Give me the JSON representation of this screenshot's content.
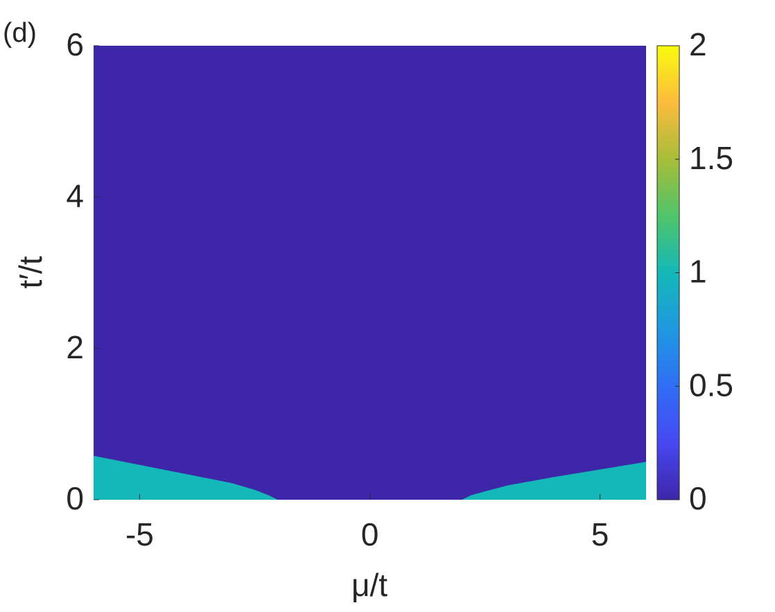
{
  "chart_data": {
    "type": "phase",
    "annotation": "(d)",
    "xlabel": "μ/t",
    "ylabel": "t′/t",
    "xlim": [
      -6,
      6
    ],
    "xticks": [
      -5,
      0,
      5
    ],
    "ylim": [
      0,
      6
    ],
    "yticks": [
      0,
      2,
      4,
      6
    ],
    "background_value": 0,
    "regions": [
      {
        "value": 1,
        "x": [
          -6,
          -6,
          -5,
          -4,
          -3,
          -2.5,
          -2.2,
          -2
        ],
        "y": [
          0,
          0.58,
          0.46,
          0.34,
          0.22,
          0.13,
          0.06,
          0
        ]
      },
      {
        "value": 1,
        "x": [
          2,
          2.2,
          2.5,
          3,
          4,
          5,
          6,
          6
        ],
        "y": [
          0,
          0.06,
          0.11,
          0.19,
          0.3,
          0.4,
          0.5,
          0
        ]
      }
    ],
    "clim": [
      0,
      2
    ],
    "cticks": [
      0,
      0.5,
      1,
      1.5,
      2
    ],
    "colormap": [
      "#3e26a8",
      "#4748f2",
      "#2f6ef5",
      "#1f98e0",
      "#14b8b8",
      "#50c46a",
      "#a8bd3a",
      "#fcbb3d",
      "#f9fb0e"
    ]
  }
}
